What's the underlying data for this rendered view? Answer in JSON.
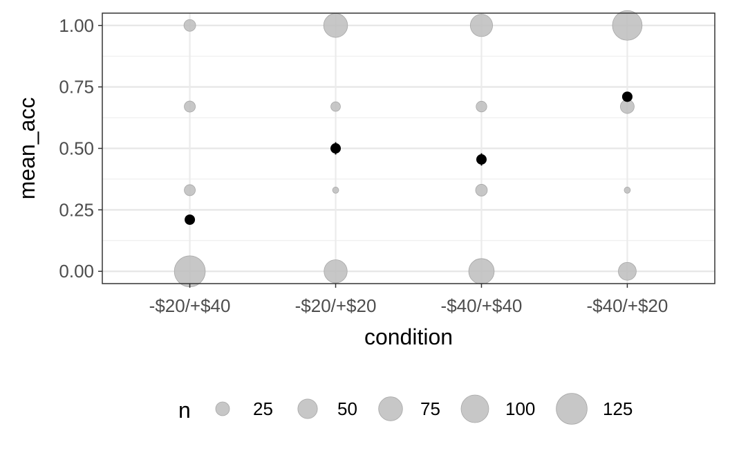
{
  "chart_data": {
    "type": "scatter",
    "title": "",
    "xlabel": "condition",
    "ylabel": "mean_acc",
    "categories": [
      "-$20/+$40",
      "-$20/+$20",
      "-$40/+$40",
      "-$40/+$20"
    ],
    "ylim": [
      -0.05,
      1.05
    ],
    "yticks": [
      0.0,
      0.25,
      0.5,
      0.75,
      1.0
    ],
    "ytick_labels": [
      "0.00",
      "0.25",
      "0.50",
      "0.75",
      "1.00"
    ],
    "grid": true,
    "point_color": "#bdbdbd",
    "mean_color": "#000000",
    "points": [
      {
        "x": "-$20/+$40",
        "y": 1.0,
        "n": 18
      },
      {
        "x": "-$20/+$40",
        "y": 0.67,
        "n": 16
      },
      {
        "x": "-$20/+$40",
        "y": 0.33,
        "n": 16
      },
      {
        "x": "-$20/+$40",
        "y": 0.0,
        "n": 125
      },
      {
        "x": "-$20/+$20",
        "y": 1.0,
        "n": 75
      },
      {
        "x": "-$20/+$20",
        "y": 0.67,
        "n": 12
      },
      {
        "x": "-$20/+$20",
        "y": 0.33,
        "n": 5
      },
      {
        "x": "-$20/+$20",
        "y": 0.0,
        "n": 70
      },
      {
        "x": "-$40/+$40",
        "y": 1.0,
        "n": 65
      },
      {
        "x": "-$40/+$40",
        "y": 0.67,
        "n": 15
      },
      {
        "x": "-$40/+$40",
        "y": 0.33,
        "n": 18
      },
      {
        "x": "-$40/+$40",
        "y": 0.0,
        "n": 85
      },
      {
        "x": "-$40/+$20",
        "y": 1.0,
        "n": 115
      },
      {
        "x": "-$40/+$20",
        "y": 0.67,
        "n": 25
      },
      {
        "x": "-$40/+$20",
        "y": 0.33,
        "n": 5
      },
      {
        "x": "-$40/+$20",
        "y": 0.0,
        "n": 42
      }
    ],
    "means": [
      {
        "x": "-$20/+$40",
        "y": 0.21,
        "ymin": 0.195,
        "ymax": 0.225
      },
      {
        "x": "-$20/+$20",
        "y": 0.5,
        "ymin": 0.475,
        "ymax": 0.525
      },
      {
        "x": "-$40/+$40",
        "y": 0.455,
        "ymin": 0.43,
        "ymax": 0.48
      },
      {
        "x": "-$40/+$20",
        "y": 0.71,
        "ymin": 0.695,
        "ymax": 0.725
      }
    ],
    "legend": {
      "title": "n",
      "position": "bottom",
      "entries": [
        {
          "label": "25",
          "n": 25
        },
        {
          "label": "50",
          "n": 50
        },
        {
          "label": "75",
          "n": 75
        },
        {
          "label": "100",
          "n": 100
        },
        {
          "label": "125",
          "n": 125
        }
      ]
    }
  }
}
